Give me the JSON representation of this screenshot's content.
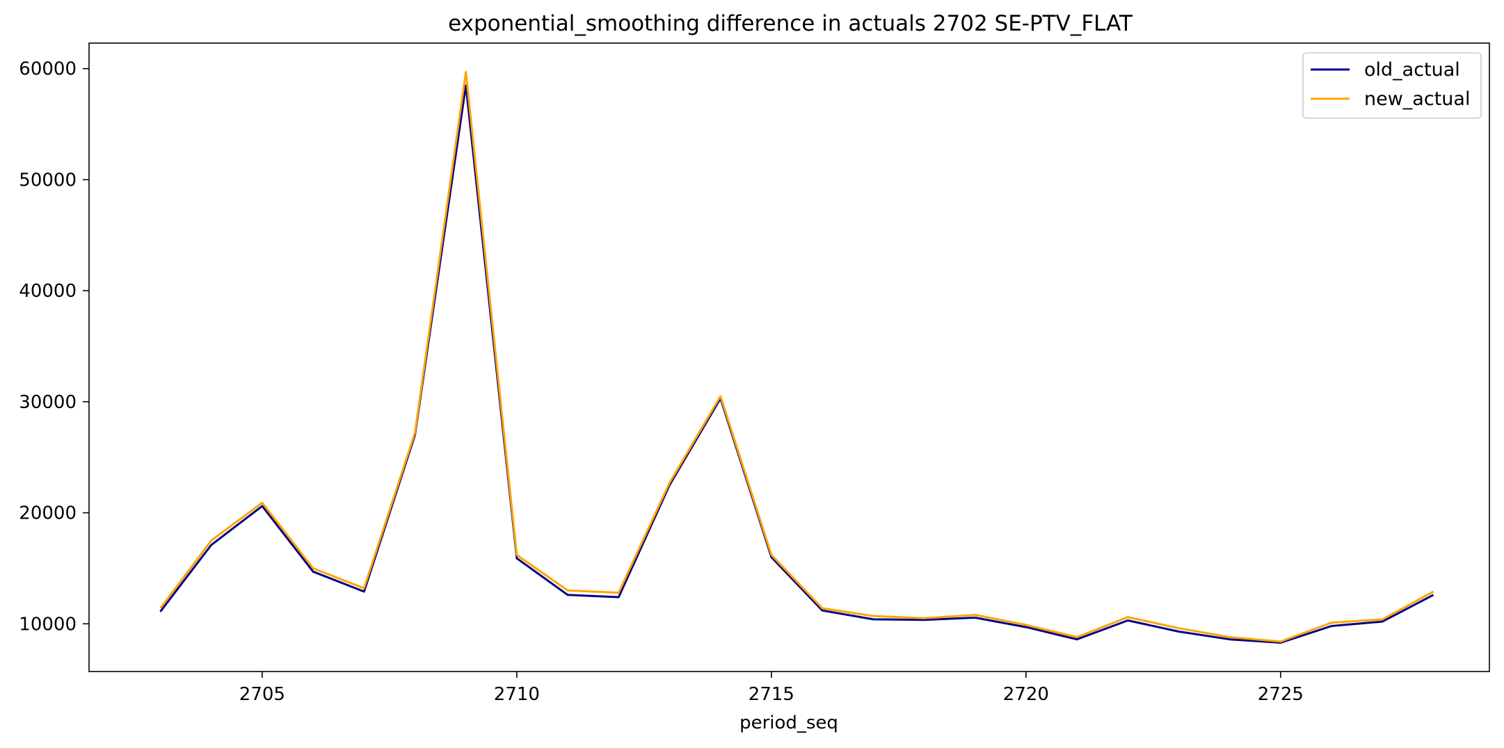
{
  "chart_data": {
    "type": "line",
    "title": "exponential_smoothing difference in actuals 2702 SE-PTV_FLAT",
    "xlabel": "period_seq",
    "ylabel": "",
    "x": [
      2703,
      2704,
      2705,
      2706,
      2707,
      2708,
      2709,
      2710,
      2711,
      2712,
      2713,
      2714,
      2715,
      2716,
      2717,
      2718,
      2719,
      2720,
      2721,
      2722,
      2723,
      2724,
      2725,
      2726,
      2727,
      2728
    ],
    "xlim": [
      2701.6,
      2729.1
    ],
    "ylim": [
      5700,
      62300
    ],
    "xticks": [
      "2705",
      "2710",
      "2715",
      "2720",
      "2725"
    ],
    "yticks": [
      "10000",
      "20000",
      "30000",
      "40000",
      "50000",
      "60000"
    ],
    "grid": false,
    "legend_position": "top-right",
    "series": [
      {
        "name": "old_actual",
        "color": "#00008b",
        "values": [
          11100,
          17100,
          20600,
          14700,
          12900,
          27000,
          58500,
          15900,
          12600,
          12400,
          22500,
          30300,
          16000,
          11200,
          10400,
          10350,
          10550,
          9700,
          8600,
          10300,
          9300,
          8600,
          8300,
          9800,
          10200,
          12600
        ]
      },
      {
        "name": "new_actual",
        "color": "#ffa500",
        "values": [
          11400,
          17500,
          20900,
          15000,
          13200,
          27200,
          59700,
          16200,
          13000,
          12800,
          22700,
          30500,
          16200,
          11400,
          10700,
          10500,
          10800,
          9900,
          8800,
          10600,
          9600,
          8800,
          8400,
          10100,
          10400,
          12900
        ]
      }
    ]
  }
}
